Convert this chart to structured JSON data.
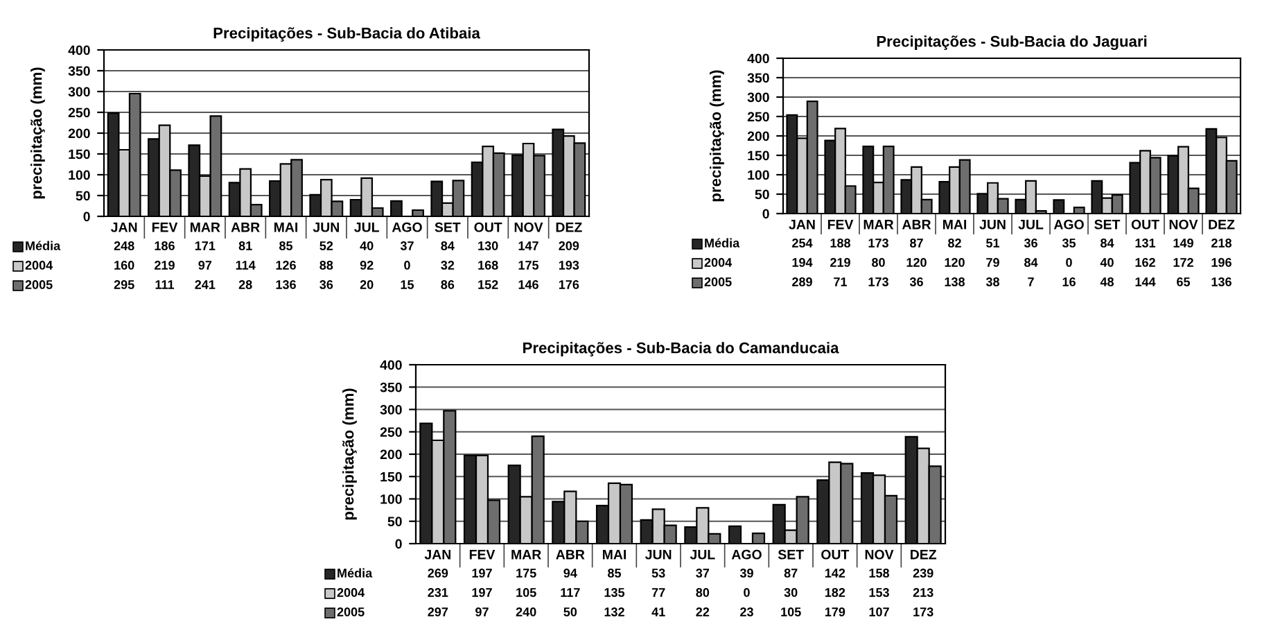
{
  "chart_data": [
    {
      "type": "bar",
      "title": "Precipitações - Sub-Bacia do Atibaia",
      "ylabel": "precipitação (mm)",
      "categories": [
        "JAN",
        "FEV",
        "MAR",
        "ABR",
        "MAI",
        "JUN",
        "JUL",
        "AGO",
        "SET",
        "OUT",
        "NOV",
        "DEZ"
      ],
      "ylim": [
        0,
        400
      ],
      "yticks": [
        0,
        50,
        100,
        150,
        200,
        250,
        300,
        350,
        400
      ],
      "grid": "y",
      "legend": "bottom left",
      "data_labels": true,
      "series": [
        {
          "name": "Média",
          "color": "#262626",
          "values": [
            248,
            186,
            171,
            81,
            85,
            52,
            40,
            37,
            84,
            130,
            147,
            209
          ]
        },
        {
          "name": "2004",
          "color": "#c8c8c8",
          "values": [
            160,
            219,
            97,
            114,
            126,
            88,
            92,
            0,
            32,
            168,
            175,
            193
          ]
        },
        {
          "name": "2005",
          "color": "#6e6e6e",
          "values": [
            295,
            111,
            241,
            28,
            136,
            36,
            20,
            15,
            86,
            152,
            146,
            176
          ]
        }
      ]
    },
    {
      "type": "bar",
      "title": "Precipitações - Sub-Bacia do Jaguari",
      "ylabel": "precipitação (mm)",
      "categories": [
        "JAN",
        "FEV",
        "MAR",
        "ABR",
        "MAI",
        "JUN",
        "JUL",
        "AGO",
        "SET",
        "OUT",
        "NOV",
        "DEZ"
      ],
      "ylim": [
        0,
        400
      ],
      "yticks": [
        0,
        50,
        100,
        150,
        200,
        250,
        300,
        350,
        400
      ],
      "grid": "y",
      "legend": "bottom left",
      "data_labels": true,
      "series": [
        {
          "name": "Média",
          "color": "#262626",
          "values": [
            254,
            188,
            173,
            87,
            82,
            51,
            36,
            35,
            84,
            131,
            149,
            218
          ]
        },
        {
          "name": "2004",
          "color": "#c8c8c8",
          "values": [
            194,
            219,
            80,
            120,
            120,
            79,
            84,
            0,
            40,
            162,
            172,
            196
          ]
        },
        {
          "name": "2005",
          "color": "#6e6e6e",
          "values": [
            289,
            71,
            173,
            36,
            138,
            38,
            7,
            16,
            48,
            144,
            65,
            136
          ]
        }
      ]
    },
    {
      "type": "bar",
      "title": "Precipitações - Sub-Bacia do Camanducaia",
      "ylabel": "precipitação (mm)",
      "categories": [
        "JAN",
        "FEV",
        "MAR",
        "ABR",
        "MAI",
        "JUN",
        "JUL",
        "AGO",
        "SET",
        "OUT",
        "NOV",
        "DEZ"
      ],
      "ylim": [
        0,
        400
      ],
      "yticks": [
        0,
        50,
        100,
        150,
        200,
        250,
        300,
        350,
        400
      ],
      "grid": "y",
      "legend": "bottom left",
      "data_labels": true,
      "series": [
        {
          "name": "Média",
          "color": "#262626",
          "values": [
            269,
            197,
            175,
            94,
            85,
            53,
            37,
            39,
            87,
            142,
            158,
            239
          ]
        },
        {
          "name": "2004",
          "color": "#c8c8c8",
          "values": [
            231,
            197,
            105,
            117,
            135,
            77,
            80,
            0,
            30,
            182,
            153,
            213
          ]
        },
        {
          "name": "2005",
          "color": "#6e6e6e",
          "values": [
            297,
            97,
            240,
            50,
            132,
            41,
            22,
            23,
            105,
            179,
            107,
            173
          ]
        }
      ]
    }
  ]
}
